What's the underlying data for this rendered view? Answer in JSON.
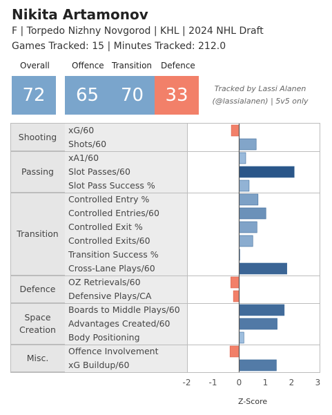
{
  "header": {
    "name": "Nikita Artamonov",
    "subtitle": "F | Torpedo Nizhny Novgorod | KHL | 2024 NHL Draft",
    "tracking": "Games Tracked: 15 | Minutes Tracked: 212.0"
  },
  "scores": {
    "overall": {
      "label": "Overall",
      "value": "72",
      "color": "#7aa5cc"
    },
    "offence": {
      "label": "Offence",
      "value": "65",
      "color": "#7aa5cc"
    },
    "transition": {
      "label": "Transition",
      "value": "70",
      "color": "#7aa5cc"
    },
    "defence": {
      "label": "Defence",
      "value": "33",
      "color": "#f28069"
    }
  },
  "credit": {
    "line1": "Tracked by Lassi Alanen",
    "line2": "(@lassialanen) | 5v5 only"
  },
  "chart_data": {
    "type": "bar",
    "orientation": "horizontal",
    "xlabel": "Z-Score",
    "xlim": [
      -2.5,
      3.2
    ],
    "xticks": [
      -2,
      -1,
      0,
      1,
      2,
      3
    ],
    "groups": [
      {
        "name": "Shooting",
        "metrics": [
          {
            "label": "xG/60",
            "value": -0.3
          },
          {
            "label": "Shots/60",
            "value": 0.65
          }
        ]
      },
      {
        "name": "Passing",
        "metrics": [
          {
            "label": "xA1/60",
            "value": 0.25
          },
          {
            "label": "Slot Passes/60",
            "value": 2.1
          },
          {
            "label": "Slot Pass Success %",
            "value": 0.38
          }
        ]
      },
      {
        "name": "Transition",
        "metrics": [
          {
            "label": "Controlled Entry %",
            "value": 0.72
          },
          {
            "label": "Controlled Entries/60",
            "value": 1.02
          },
          {
            "label": "Controlled Exit %",
            "value": 0.68
          },
          {
            "label": "Controlled Exits/60",
            "value": 0.52
          },
          {
            "label": "Transition Success %",
            "value": 0.02
          },
          {
            "label": "Cross-Lane Plays/60",
            "value": 1.82
          }
        ]
      },
      {
        "name": "Defence",
        "metrics": [
          {
            "label": "OZ Retrievals/60",
            "value": -0.32
          },
          {
            "label": "Defensive Plays/CA",
            "value": -0.22
          }
        ]
      },
      {
        "name": "Space Creation",
        "metrics": [
          {
            "label": "Boards to Middle Plays/60",
            "value": 1.72
          },
          {
            "label": "Advantages Created/60",
            "value": 1.45
          },
          {
            "label": "Body Positioning",
            "value": 0.18
          }
        ]
      },
      {
        "name": "Misc.",
        "metrics": [
          {
            "label": "Offence Involvement",
            "value": -0.35
          },
          {
            "label": "xG Buildup/60",
            "value": 1.42
          }
        ]
      }
    ],
    "colors": {
      "negative": "#f28069",
      "positive_low": "#a9c8e6",
      "positive_high": "#2a5689",
      "zero_line": "#555555"
    }
  }
}
